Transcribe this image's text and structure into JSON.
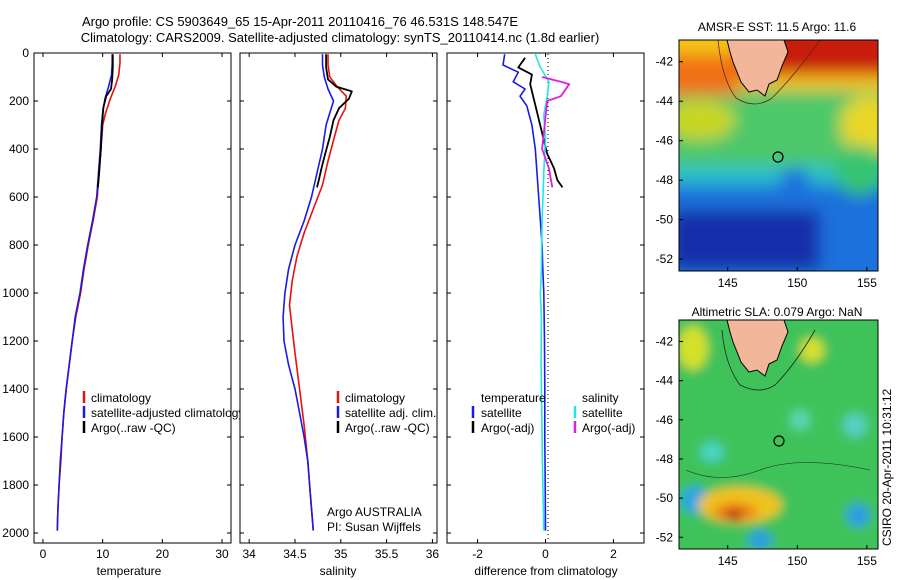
{
  "header": {
    "line1": "Argo profile: CS 5903649_65 15-Apr-2011 20110416_76 46.531S 148.547E",
    "line2": "Climatology: CARS2009. Satellite-adjusted climatology: synTS_20110414.nc (1.8d earlier)"
  },
  "credit": "CSIRO 20-Apr-2011 10:31:12",
  "colors": {
    "red": "#e8120c",
    "blue": "#1a1ae6",
    "black": "#000000",
    "cyan": "#22e6e6",
    "magenta": "#e01ee0",
    "land": "#f2b79a"
  },
  "chart_data": [
    {
      "type": "line",
      "id": "temperature",
      "xlabel": "temperature",
      "xlim": [
        -1.5,
        31.5
      ],
      "ylim": [
        0,
        2040
      ],
      "y_reversed": true,
      "xticks": [
        0,
        10,
        20,
        30
      ],
      "yticks": [
        0,
        200,
        400,
        600,
        800,
        1000,
        1200,
        1400,
        1600,
        1800,
        2000
      ],
      "legend": [
        "climatology",
        "satellite-adjusted climatology",
        "Argo(..raw -QC)"
      ],
      "series": [
        {
          "name": "climatology",
          "color": "red",
          "points": [
            [
              12.9,
              5
            ],
            [
              12.9,
              40
            ],
            [
              12.7,
              90
            ],
            [
              12.1,
              140
            ],
            [
              11.3,
              190
            ],
            [
              10.5,
              250
            ],
            [
              10,
              300
            ],
            [
              9.7,
              400
            ],
            [
              9.4,
              500
            ],
            [
              9.1,
              600
            ],
            [
              8.4,
              700
            ],
            [
              7.6,
              800
            ],
            [
              6.9,
              900
            ],
            [
              6.3,
              1000
            ],
            [
              5.5,
              1100
            ],
            [
              4.9,
              1200
            ],
            [
              4.4,
              1300
            ],
            [
              3.9,
              1400
            ],
            [
              3.5,
              1500
            ],
            [
              3.2,
              1600
            ],
            [
              3,
              1700
            ],
            [
              2.7,
              1800
            ],
            [
              2.5,
              1900
            ],
            [
              2.4,
              1990
            ]
          ]
        },
        {
          "name": "satellite-adjusted climatology",
          "color": "blue",
          "points": [
            [
              11.6,
              5
            ],
            [
              11.6,
              40
            ],
            [
              11.5,
              90
            ],
            [
              11,
              140
            ],
            [
              10.4,
              190
            ],
            [
              10,
              250
            ],
            [
              9.8,
              300
            ],
            [
              9.6,
              400
            ],
            [
              9.3,
              500
            ],
            [
              9,
              600
            ],
            [
              8.3,
              700
            ],
            [
              7.5,
              800
            ],
            [
              6.8,
              900
            ],
            [
              6.2,
              1000
            ],
            [
              5.4,
              1100
            ],
            [
              4.9,
              1200
            ],
            [
              4.4,
              1300
            ],
            [
              3.9,
              1400
            ],
            [
              3.5,
              1500
            ],
            [
              3.2,
              1600
            ],
            [
              2.9,
              1700
            ],
            [
              2.7,
              1800
            ],
            [
              2.5,
              1900
            ],
            [
              2.4,
              1990
            ]
          ]
        },
        {
          "name": "Argo(..raw -QC)",
          "color": "black",
          "points": [
            [
              11.7,
              5
            ],
            [
              11.7,
              60
            ],
            [
              11.6,
              110
            ],
            [
              11.5,
              130
            ],
            [
              11.4,
              150
            ],
            [
              10.6,
              180
            ],
            [
              10.1,
              230
            ],
            [
              9.9,
              300
            ],
            [
              9.7,
              400
            ],
            [
              9.4,
              500
            ],
            [
              9.2,
              560
            ]
          ]
        }
      ]
    },
    {
      "type": "line",
      "id": "salinity",
      "xlabel": "salinity",
      "xlim": [
        33.9,
        36.05
      ],
      "ylim": [
        0,
        2040
      ],
      "y_reversed": true,
      "xticks": [
        34,
        34.5,
        35,
        35.5,
        36
      ],
      "legend": [
        "climatology",
        "satellite adj. clim.",
        "Argo(..raw -QC)"
      ],
      "annotation": [
        "Argo AUSTRALIA",
        "PI: Susan Wijffels"
      ],
      "series": [
        {
          "name": "climatology",
          "color": "red",
          "points": [
            [
              34.86,
              5
            ],
            [
              34.86,
              50
            ],
            [
              34.88,
              100
            ],
            [
              34.96,
              140
            ],
            [
              35.06,
              180
            ],
            [
              35.05,
              230
            ],
            [
              34.98,
              280
            ],
            [
              34.93,
              350
            ],
            [
              34.86,
              450
            ],
            [
              34.8,
              550
            ],
            [
              34.7,
              650
            ],
            [
              34.6,
              750
            ],
            [
              34.52,
              850
            ],
            [
              34.47,
              950
            ],
            [
              34.44,
              1050
            ],
            [
              34.47,
              1150
            ],
            [
              34.5,
              1250
            ],
            [
              34.55,
              1400
            ],
            [
              34.6,
              1550
            ],
            [
              34.64,
              1700
            ],
            [
              34.67,
              1850
            ],
            [
              34.7,
              1990
            ]
          ]
        },
        {
          "name": "satellite adj. clim.",
          "color": "blue",
          "points": [
            [
              34.8,
              5
            ],
            [
              34.8,
              50
            ],
            [
              34.82,
              100
            ],
            [
              34.86,
              150
            ],
            [
              34.92,
              200
            ],
            [
              34.88,
              250
            ],
            [
              34.84,
              300
            ],
            [
              34.8,
              400
            ],
            [
              34.74,
              500
            ],
            [
              34.68,
              600
            ],
            [
              34.6,
              700
            ],
            [
              34.5,
              800
            ],
            [
              34.43,
              900
            ],
            [
              34.39,
              1000
            ],
            [
              34.37,
              1100
            ],
            [
              34.38,
              1200
            ],
            [
              34.43,
              1300
            ],
            [
              34.5,
              1400
            ],
            [
              34.55,
              1500
            ],
            [
              34.6,
              1600
            ],
            [
              34.64,
              1700
            ],
            [
              34.66,
              1800
            ],
            [
              34.68,
              1900
            ],
            [
              34.7,
              1990
            ]
          ]
        },
        {
          "name": "Argo(..raw -QC)",
          "color": "black",
          "points": [
            [
              34.84,
              5
            ],
            [
              34.84,
              60
            ],
            [
              34.86,
              110
            ],
            [
              34.95,
              140
            ],
            [
              35.12,
              160
            ],
            [
              35.09,
              190
            ],
            [
              34.98,
              230
            ],
            [
              34.92,
              280
            ],
            [
              34.88,
              350
            ],
            [
              34.83,
              420
            ],
            [
              34.79,
              480
            ],
            [
              34.76,
              530
            ],
            [
              34.74,
              560
            ]
          ]
        }
      ]
    },
    {
      "type": "line",
      "id": "difference",
      "xlabel": "difference from climatology",
      "xlim": [
        -2.9,
        2.9
      ],
      "ylim": [
        0,
        2040
      ],
      "y_reversed": true,
      "xticks": [
        -2,
        0,
        2
      ],
      "legend_left": [
        "temperature",
        "satellite",
        "Argo(-adj)"
      ],
      "legend_right": [
        "salinity",
        "satellite",
        "Argo(-adj)"
      ],
      "series": [
        {
          "name": "temperature satellite",
          "color": "blue",
          "points": [
            [
              -1.2,
              5
            ],
            [
              -1.25,
              50
            ],
            [
              -0.8,
              80
            ],
            [
              -0.95,
              120
            ],
            [
              -0.6,
              150
            ],
            [
              -0.75,
              180
            ],
            [
              -0.55,
              220
            ],
            [
              -0.4,
              300
            ],
            [
              -0.3,
              400
            ],
            [
              -0.25,
              500
            ],
            [
              -0.2,
              600
            ],
            [
              -0.15,
              700
            ],
            [
              -0.1,
              800
            ],
            [
              -0.08,
              900
            ],
            [
              -0.05,
              1000
            ],
            [
              -0.03,
              1200
            ],
            [
              -0.02,
              1400
            ],
            [
              -0.02,
              1600
            ],
            [
              -0.01,
              1800
            ],
            [
              0,
              1990
            ]
          ]
        },
        {
          "name": "temperature Argo(-adj)",
          "color": "black",
          "points": [
            [
              -0.6,
              20
            ],
            [
              -0.8,
              60
            ],
            [
              -0.4,
              90
            ],
            [
              -0.45,
              130
            ],
            [
              0.05,
              420
            ],
            [
              0.25,
              480
            ],
            [
              0.35,
              530
            ],
            [
              0.5,
              560
            ]
          ]
        },
        {
          "name": "salinity satellite",
          "color": "cyan",
          "points": [
            [
              -0.3,
              5
            ],
            [
              -0.15,
              60
            ],
            [
              0.1,
              120
            ],
            [
              0.05,
              180
            ],
            [
              -0.05,
              260
            ],
            [
              0,
              350
            ],
            [
              -0.05,
              500
            ],
            [
              -0.1,
              700
            ],
            [
              -0.12,
              900
            ],
            [
              -0.15,
              1000
            ],
            [
              -0.12,
              1100
            ],
            [
              -0.13,
              1300
            ],
            [
              -0.11,
              1500
            ],
            [
              -0.09,
              1700
            ],
            [
              -0.07,
              1850
            ],
            [
              -0.05,
              1990
            ]
          ]
        },
        {
          "name": "salinity Argo(-adj)",
          "color": "magenta",
          "points": [
            [
              -0.1,
              100
            ],
            [
              0.45,
              120
            ],
            [
              0.7,
              130
            ],
            [
              0.45,
              180
            ],
            [
              0.05,
              200
            ],
            [
              -0.1,
              400
            ],
            [
              0.1,
              480
            ],
            [
              0.2,
              560
            ]
          ]
        }
      ]
    },
    {
      "type": "heatmap",
      "id": "sst_map",
      "title": "AMSR-E SST: 11.5 Argo: 11.6",
      "xlim": [
        141.5,
        155.8
      ],
      "ylim": [
        -52.6,
        -40.9
      ],
      "xticks": [
        145,
        150,
        155
      ],
      "yticks": [
        -42,
        -44,
        -46,
        -48,
        -50,
        -52
      ],
      "marker": [
        148.547,
        -46.531
      ]
    },
    {
      "type": "heatmap",
      "id": "sla_map",
      "title": "Altimetric SLA: 0.079 Argo: NaN",
      "xlim": [
        141.5,
        155.8
      ],
      "ylim": [
        -52.6,
        -40.9
      ],
      "xticks": [
        145,
        150,
        155
      ],
      "yticks": [
        -42,
        -44,
        -46,
        -48,
        -50,
        -52
      ],
      "marker": [
        148.547,
        -46.531
      ]
    }
  ]
}
